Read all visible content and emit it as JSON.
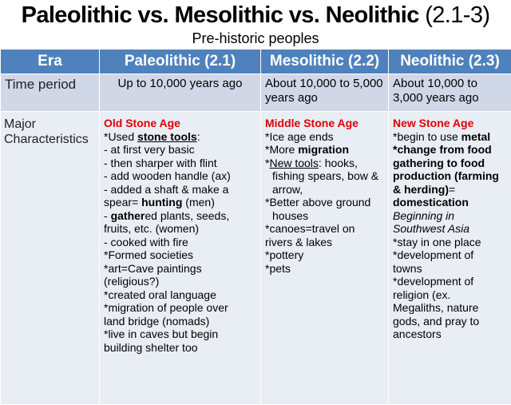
{
  "title": {
    "main": "Paleolithic vs. Mesolithic vs. Neolithic",
    "suffix": "(2.1-3)"
  },
  "subtitle": "Pre-historic peoples",
  "headers": [
    "Era",
    "Paleolithic (2.1)",
    "Mesolithic (2.2)",
    "Neolithic (2.3)"
  ],
  "rows": {
    "time": {
      "label": "Time period",
      "paleo": "Up to 10,000 years ago",
      "meso": "About 10,000 to 5,000 years ago",
      "neo": "About 10,000 to 3,000 years ago"
    },
    "chars": {
      "label": "Major Characteristics"
    }
  },
  "paleo": {
    "age": "Old Stone Age",
    "l1a": "*Used ",
    "l1b": "stone tools",
    "l1c": ":",
    "l2": "- at first very basic",
    "l3": "- then sharper with flint",
    "l4": "- add wooden handle (ax)",
    "l5": "- added a shaft & make a",
    "l6a": "spear= ",
    "l6b": "hunting",
    "l6c": " (men)",
    "l7a": "- ",
    "l7b": "gather",
    "l7c": "ed plants, seeds,",
    "l8": "fruits, etc. (women)",
    "l9": "-  cooked with fire",
    "l10": "*Formed societies",
    "l11": "*art=Cave paintings",
    "l12": "(religious?)",
    "l13": "*created oral language",
    "l14": "*migration of people over",
    "l15": "land bridge (nomads)",
    "l16": "*live in caves but begin",
    "l17": "building shelter too"
  },
  "meso": {
    "age": "Middle Stone Age",
    "l1": "*Ice age ends",
    "l2a": "*More ",
    "l2b": "migration",
    "l3a": "*",
    "l3b": "New tools",
    "l3c": ": hooks,",
    "l4": "fishing spears, bow &",
    "l5": "arrow,",
    "l6": "*Better above ground",
    "l7": "houses",
    "l8": "*canoes=travel on",
    "l9": "rivers & lakes",
    "l10": "*pottery",
    "l11": "*pets"
  },
  "neo": {
    "age": "New Stone Age",
    "l1a": "*begin to use ",
    "l1b": "metal",
    "l2": "*change from food",
    "l3": "gathering to food",
    "l4": "production (farming",
    "l5a": "& herding)",
    "l5b": "=",
    "l6": "domestication",
    "l7": "Beginning in",
    "l8": "Southwest Asia",
    "l9": "*stay in one place",
    "l10": "*development of",
    "l11": "towns",
    "l12": "*development of",
    "l13": "religion (ex.",
    "l14": "Megaliths, nature",
    "l15": "gods, and pray to",
    "l16": "ancestors"
  }
}
